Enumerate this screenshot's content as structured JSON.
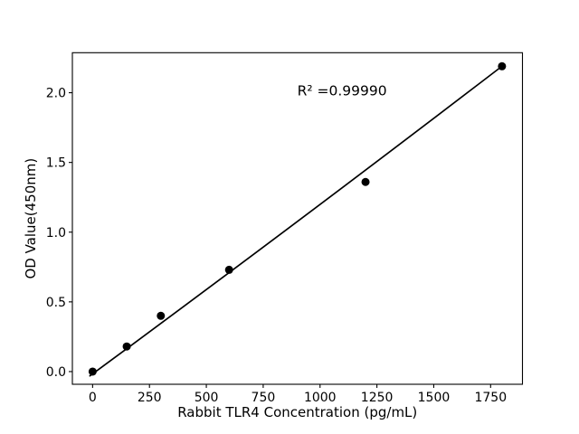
{
  "chart_data": {
    "type": "scatter",
    "title": "",
    "xlabel": "Rabbit TLR4 Concentration (pg/mL)",
    "ylabel": "OD Value(450nm)",
    "x_tick_labels": [
      "0",
      "250",
      "500",
      "750",
      "1000",
      "1250",
      "1500",
      "1750"
    ],
    "x_tick_values": [
      0,
      250,
      500,
      750,
      1000,
      1250,
      1500,
      1750
    ],
    "y_tick_labels": [
      "0.0",
      "0.5",
      "1.0",
      "1.5",
      "2.0"
    ],
    "y_tick_values": [
      0,
      0.5,
      1.0,
      1.5,
      2.0
    ],
    "xlim": [
      -89,
      1890
    ],
    "ylim": [
      -0.091,
      2.287
    ],
    "grid": false,
    "legend": false,
    "series": [
      {
        "name": "standard-points",
        "type": "scatter",
        "marker": "circle",
        "color": "#000000",
        "x": [
          0,
          150,
          300,
          600,
          1200,
          1800
        ],
        "y": [
          0.0,
          0.18,
          0.4,
          0.73,
          1.36,
          2.19
        ]
      }
    ],
    "fit_line": {
      "color": "#000000",
      "start": [
        -12,
        -0.031
      ],
      "control": [
        890,
        1.053
      ],
      "end": [
        1800,
        2.19
      ]
    },
    "annotation": {
      "text": "R² =0.99990",
      "r_squared": 0.9999,
      "x": 900,
      "y": 1.98
    }
  },
  "colors": {
    "background": "#ffffff",
    "foreground": "#000000"
  }
}
